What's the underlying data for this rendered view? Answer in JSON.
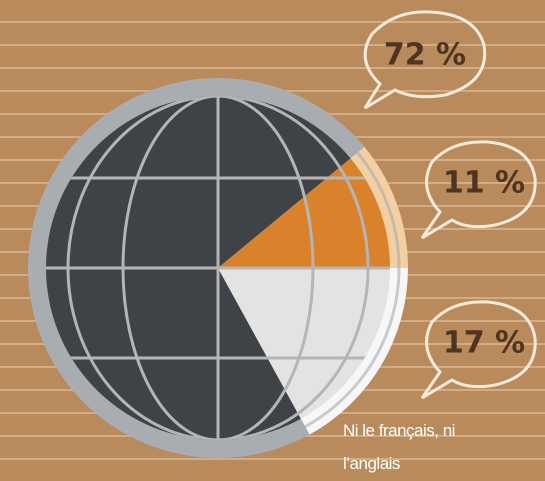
{
  "chart_data": {
    "type": "pie",
    "categories": [
      null,
      null,
      "Ni le français, ni l’anglais"
    ],
    "values": [
      72,
      11,
      17
    ],
    "value_labels": [
      "72 %",
      "11 %",
      "17 %"
    ],
    "colors": [
      "#3f4347",
      "#d9822b",
      "#e3e3e3"
    ]
  }
}
